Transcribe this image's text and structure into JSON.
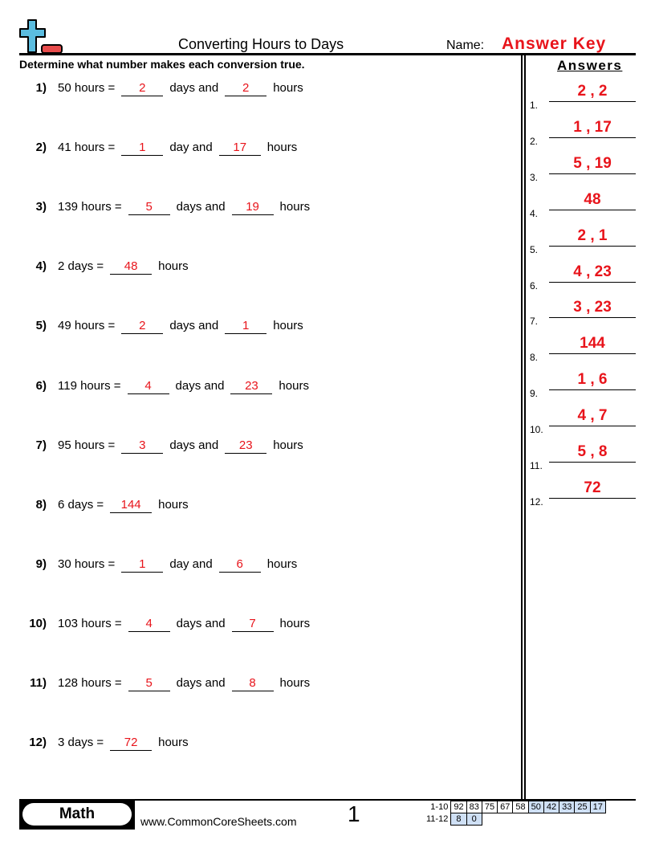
{
  "header": {
    "title": "Converting Hours to Days",
    "name_label": "Name:",
    "name_value": "Answer Key",
    "instructions": "Determine what number makes each conversion true.",
    "answers_title": "Answers"
  },
  "problems": [
    {
      "num": "1)",
      "parts": [
        "50 hours =",
        "2",
        "days and",
        "2",
        "hours"
      ]
    },
    {
      "num": "2)",
      "parts": [
        "41 hours =",
        "1",
        "day and",
        "17",
        "hours"
      ]
    },
    {
      "num": "3)",
      "parts": [
        "139 hours =",
        "5",
        "days and",
        "19",
        "hours"
      ]
    },
    {
      "num": "4)",
      "parts": [
        "2 days =",
        "48",
        "hours"
      ]
    },
    {
      "num": "5)",
      "parts": [
        "49 hours =",
        "2",
        "days and",
        "1",
        "hours"
      ]
    },
    {
      "num": "6)",
      "parts": [
        "119 hours =",
        "4",
        "days and",
        "23",
        "hours"
      ]
    },
    {
      "num": "7)",
      "parts": [
        "95 hours =",
        "3",
        "days and",
        "23",
        "hours"
      ]
    },
    {
      "num": "8)",
      "parts": [
        "6 days =",
        "144",
        "hours"
      ]
    },
    {
      "num": "9)",
      "parts": [
        "30 hours =",
        "1",
        "day and",
        "6",
        "hours"
      ]
    },
    {
      "num": "10)",
      "parts": [
        "103 hours =",
        "4",
        "days and",
        "7",
        "hours"
      ]
    },
    {
      "num": "11)",
      "parts": [
        "128 hours =",
        "5",
        "days and",
        "8",
        "hours"
      ]
    },
    {
      "num": "12)",
      "parts": [
        "3 days =",
        "72",
        "hours"
      ]
    }
  ],
  "answers": [
    {
      "num": "1.",
      "value": "2 , 2"
    },
    {
      "num": "2.",
      "value": "1 , 17"
    },
    {
      "num": "3.",
      "value": "5 , 19"
    },
    {
      "num": "4.",
      "value": "48"
    },
    {
      "num": "5.",
      "value": "2 , 1"
    },
    {
      "num": "6.",
      "value": "4 , 23"
    },
    {
      "num": "7.",
      "value": "3 , 23"
    },
    {
      "num": "8.",
      "value": "144"
    },
    {
      "num": "9.",
      "value": "1 , 6"
    },
    {
      "num": "10.",
      "value": "4 , 7"
    },
    {
      "num": "11.",
      "value": "5 , 8"
    },
    {
      "num": "12.",
      "value": "72"
    }
  ],
  "footer": {
    "subject": "Math",
    "website": "www.CommonCoreSheets.com",
    "page": "1",
    "score_rows": [
      {
        "label": "1-10",
        "scores": [
          "92",
          "83",
          "75",
          "67",
          "58",
          "50",
          "42",
          "33",
          "25",
          "17"
        ]
      },
      {
        "label": "11-12",
        "scores": [
          "8",
          "0"
        ]
      }
    ]
  },
  "colors": {
    "answer": "#e8141b",
    "logo_plus": "#5bbde0",
    "logo_minus": "#e84c4c",
    "score_highlight": "#cfe0f5"
  }
}
